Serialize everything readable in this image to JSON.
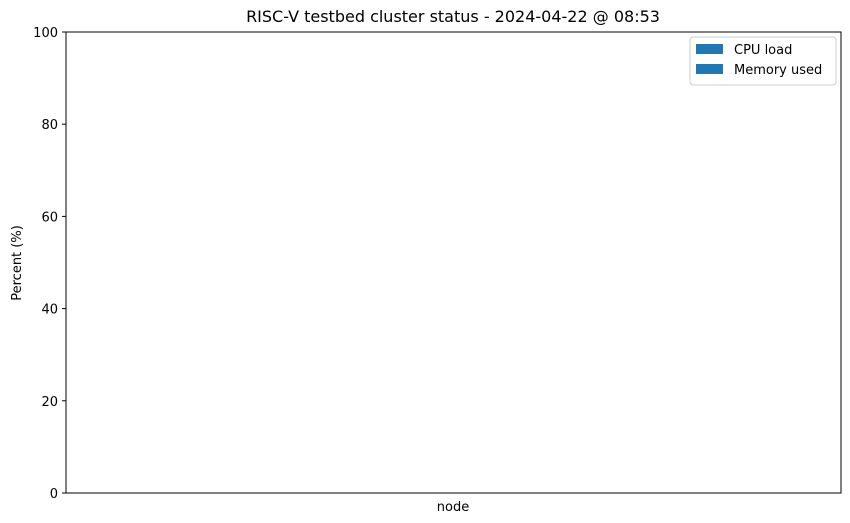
{
  "chart_data": {
    "type": "bar",
    "title": "RISC-V testbed cluster status - 2024-04-22 @ 08:53",
    "xlabel": "node",
    "ylabel": "Percent (%)",
    "ylim": [
      0,
      100
    ],
    "yticks": [
      0,
      20,
      40,
      60,
      80,
      100
    ],
    "categories": [],
    "series": [
      {
        "name": "CPU load",
        "values": [],
        "color": "#1f77b4"
      },
      {
        "name": "Memory used",
        "values": [],
        "color": "#1f77b4"
      }
    ],
    "grid": false,
    "legend_position": "top-right"
  }
}
